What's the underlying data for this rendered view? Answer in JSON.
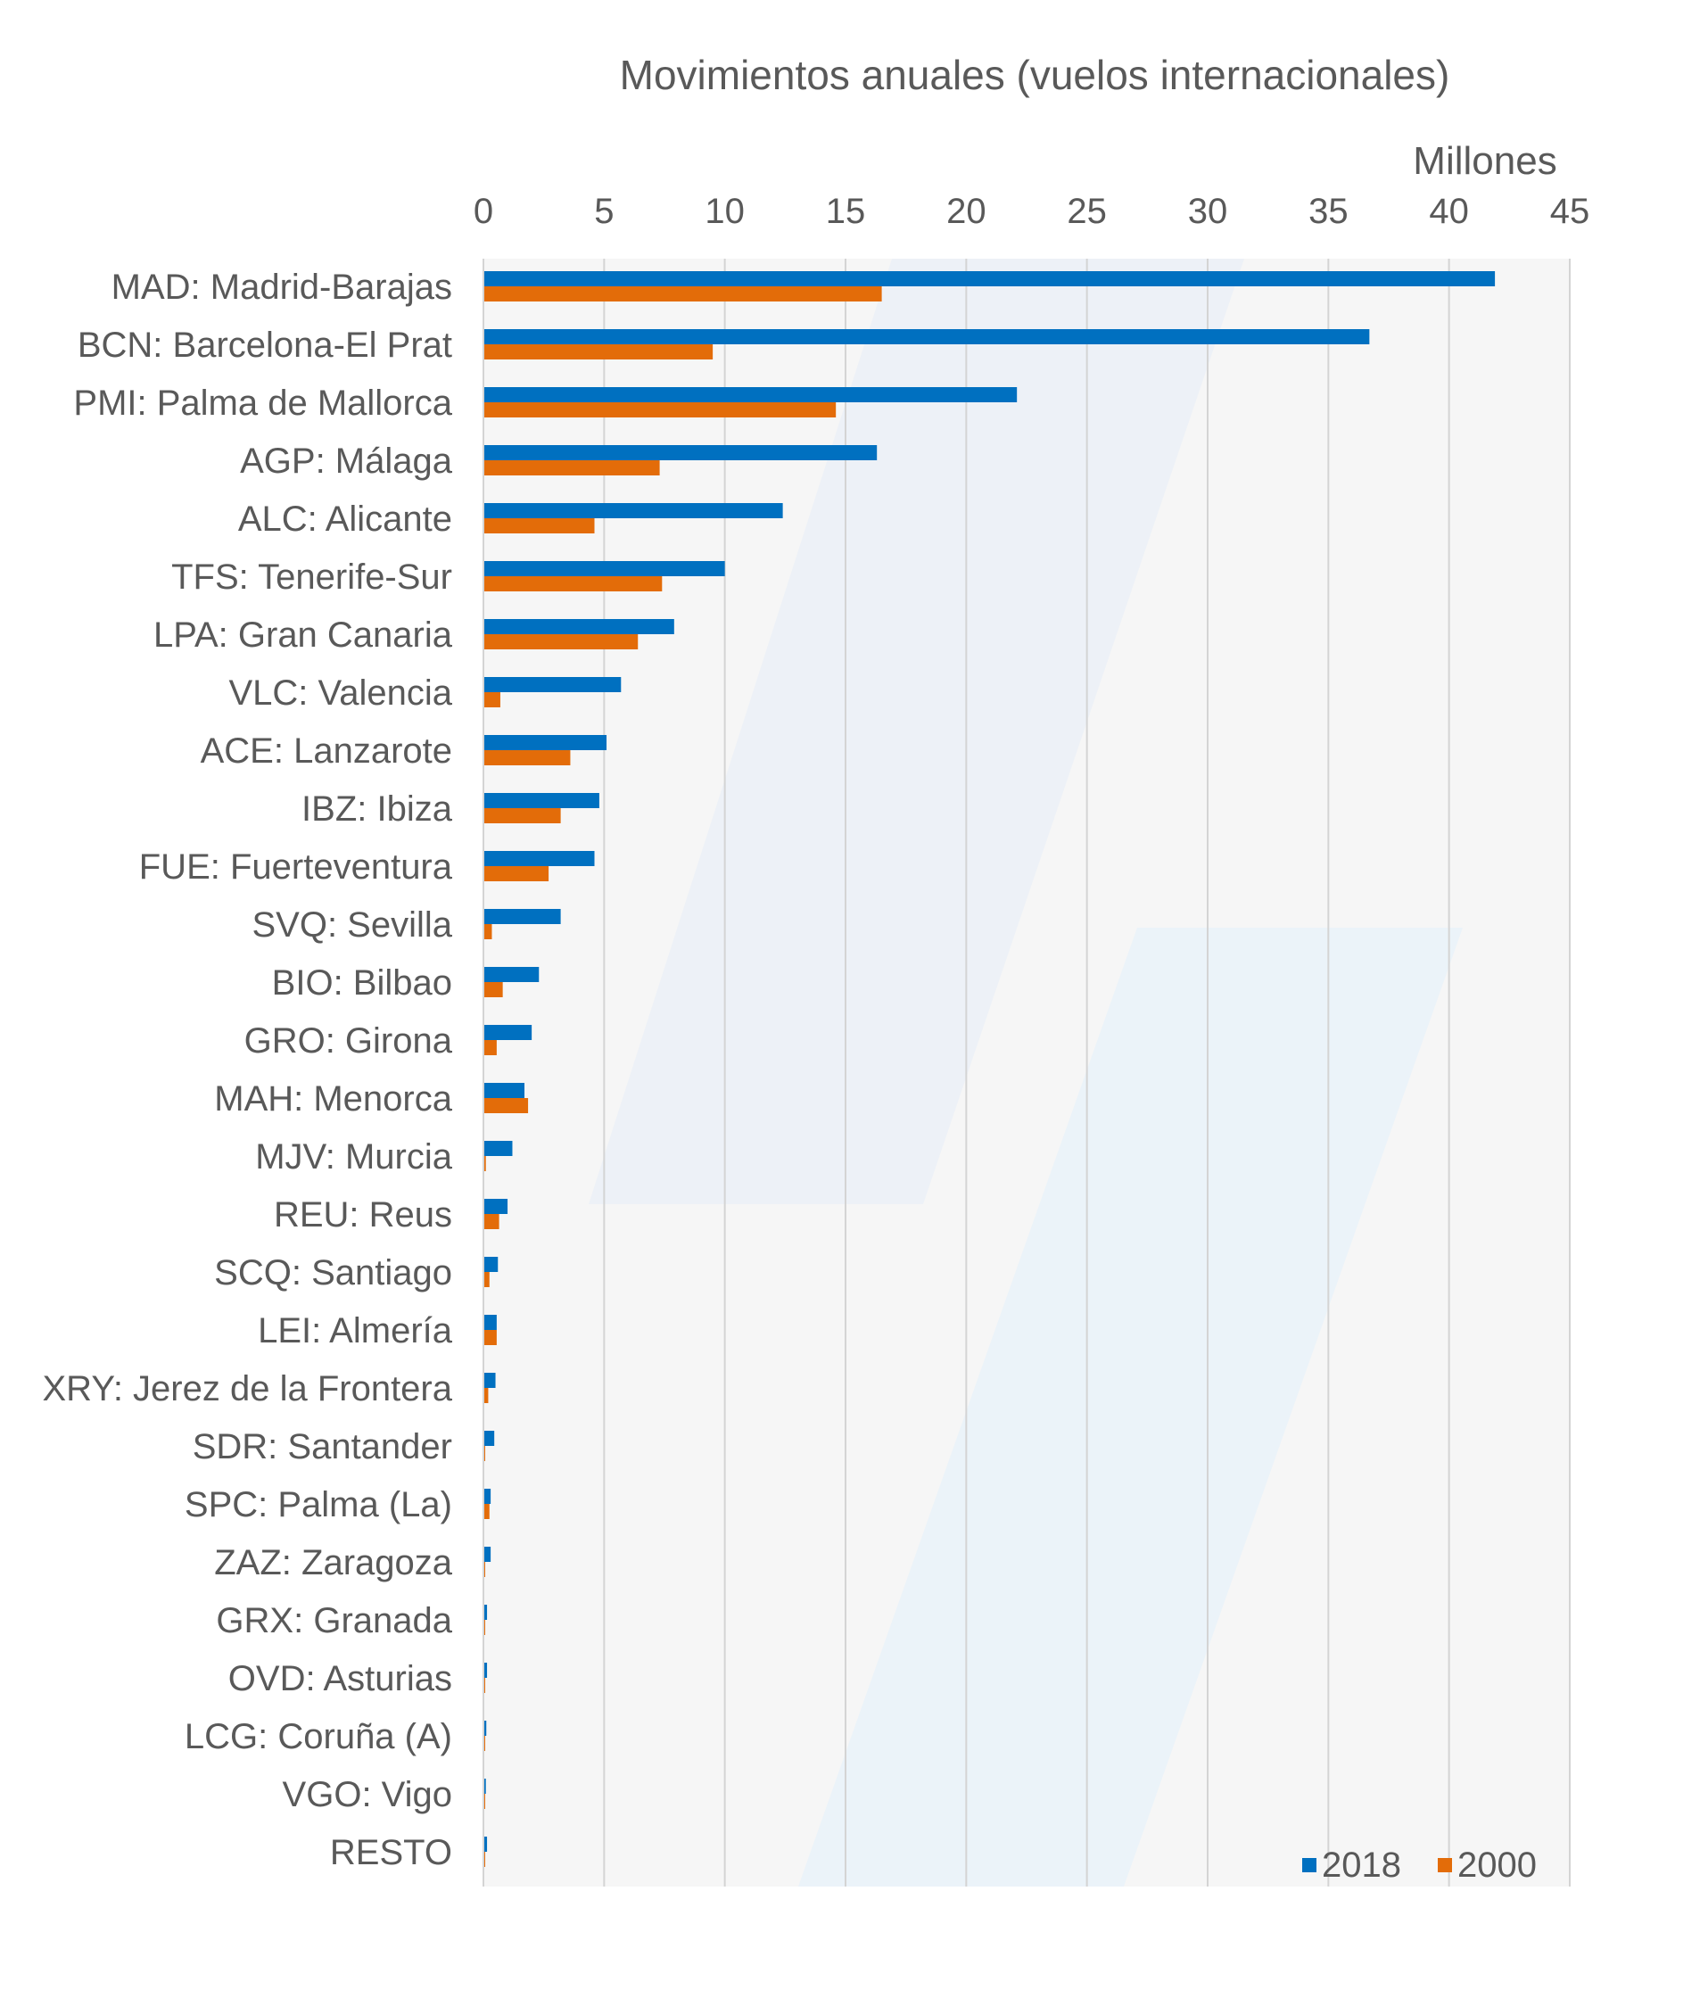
{
  "chart_data": {
    "type": "bar",
    "orientation": "horizontal",
    "title": "Movimientos anuales (vuelos internacionales)",
    "unit_label": "Millones",
    "xlim": [
      0,
      45
    ],
    "xticks": [
      "0",
      "5",
      "10",
      "15",
      "20",
      "25",
      "30",
      "35",
      "40",
      "45"
    ],
    "grid": true,
    "legend_position": "bottom-right",
    "categories": [
      "MAD: Madrid-Barajas",
      "BCN: Barcelona-El Prat",
      "PMI: Palma de Mallorca",
      "AGP: Málaga",
      "ALC: Alicante",
      "TFS: Tenerife-Sur",
      "LPA: Gran Canaria",
      "VLC: Valencia",
      "ACE: Lanzarote",
      "IBZ: Ibiza",
      "FUE: Fuerteventura",
      "SVQ: Sevilla",
      "BIO: Bilbao",
      "GRO: Girona",
      "MAH: Menorca",
      "MJV: Murcia",
      "REU: Reus",
      "SCQ: Santiago",
      "LEI: Almería",
      "XRY: Jerez de la Frontera",
      "SDR: Santander",
      "SPC: Palma (La)",
      "ZAZ: Zaragoza",
      "GRX: Granada",
      "OVD: Asturias",
      "LCG: Coruña (A)",
      "VGO: Vigo",
      "RESTO"
    ],
    "series": [
      {
        "name": "2018",
        "color": "#0070C0",
        "values": [
          41.9,
          36.7,
          22.1,
          16.3,
          12.4,
          10.0,
          7.9,
          5.7,
          5.1,
          4.8,
          4.6,
          3.2,
          2.3,
          2.0,
          1.7,
          1.2,
          1.0,
          0.6,
          0.55,
          0.5,
          0.45,
          0.3,
          0.3,
          0.15,
          0.15,
          0.12,
          0.1,
          0.15
        ]
      },
      {
        "name": "2000",
        "color": "#E36C09",
        "values": [
          16.5,
          9.5,
          14.6,
          7.3,
          4.6,
          7.4,
          6.4,
          0.7,
          3.6,
          3.2,
          2.7,
          0.35,
          0.8,
          0.55,
          1.85,
          0.1,
          0.65,
          0.25,
          0.55,
          0.2,
          0.05,
          0.25,
          0.05,
          0.05,
          0.05,
          0.05,
          0.05,
          0.05
        ]
      }
    ]
  }
}
